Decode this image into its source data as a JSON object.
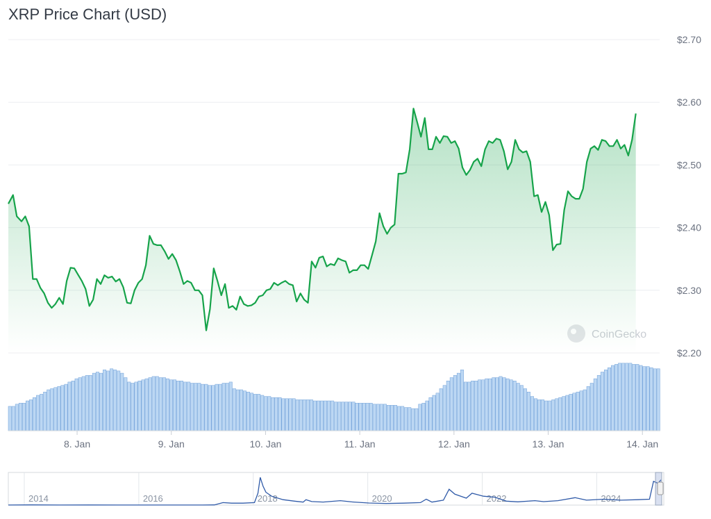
{
  "title": "XRP Price Chart (USD)",
  "watermark": "CoinGecko",
  "chart_data": {
    "type": "line",
    "title": "XRP Price Chart (USD)",
    "xlabel": "",
    "ylabel": "",
    "ylim": [
      2.2,
      2.7
    ],
    "y_ticks": [
      "$2.20",
      "$2.30",
      "$2.40",
      "$2.50",
      "$2.60",
      "$2.70"
    ],
    "y_tick_values": [
      2.2,
      2.3,
      2.4,
      2.5,
      2.6,
      2.7
    ],
    "x_ticks": [
      "8. Jan",
      "9. Jan",
      "10. Jan",
      "11. Jan",
      "12. Jan",
      "13. Jan",
      "14. Jan"
    ],
    "x_tick_values": [
      0.73,
      1.73,
      2.73,
      3.73,
      4.73,
      5.73,
      6.73
    ],
    "xlim": [
      0,
      6.92
    ],
    "grid": true,
    "colors": {
      "line": "#16a34a",
      "fill_top": "#16a34a",
      "volume_bar": "#bcd7f3",
      "volume_edge": "#6e9fd8",
      "navigator": "#2f5aa8"
    },
    "series": [
      {
        "values": [
          [
            0.0,
            2.438
          ],
          [
            0.05,
            2.452
          ],
          [
            0.09,
            2.418
          ],
          [
            0.14,
            2.41
          ],
          [
            0.18,
            2.418
          ],
          [
            0.22,
            2.402
          ],
          [
            0.26,
            2.318
          ],
          [
            0.3,
            2.318
          ],
          [
            0.34,
            2.304
          ],
          [
            0.38,
            2.295
          ],
          [
            0.42,
            2.28
          ],
          [
            0.46,
            2.272
          ],
          [
            0.5,
            2.278
          ],
          [
            0.54,
            2.288
          ],
          [
            0.58,
            2.278
          ],
          [
            0.62,
            2.315
          ],
          [
            0.66,
            2.336
          ],
          [
            0.7,
            2.335
          ],
          [
            0.74,
            2.325
          ],
          [
            0.78,
            2.315
          ],
          [
            0.82,
            2.302
          ],
          [
            0.86,
            2.275
          ],
          [
            0.9,
            2.285
          ],
          [
            0.94,
            2.318
          ],
          [
            0.98,
            2.31
          ],
          [
            1.02,
            2.324
          ],
          [
            1.06,
            2.32
          ],
          [
            1.1,
            2.322
          ],
          [
            1.14,
            2.314
          ],
          [
            1.18,
            2.318
          ],
          [
            1.22,
            2.305
          ],
          [
            1.26,
            2.28
          ],
          [
            1.3,
            2.279
          ],
          [
            1.34,
            2.3
          ],
          [
            1.38,
            2.312
          ],
          [
            1.42,
            2.318
          ],
          [
            1.46,
            2.34
          ],
          [
            1.5,
            2.387
          ],
          [
            1.54,
            2.374
          ],
          [
            1.58,
            2.372
          ],
          [
            1.62,
            2.372
          ],
          [
            1.66,
            2.362
          ],
          [
            1.7,
            2.35
          ],
          [
            1.74,
            2.358
          ],
          [
            1.78,
            2.348
          ],
          [
            1.82,
            2.33
          ],
          [
            1.86,
            2.31
          ],
          [
            1.9,
            2.315
          ],
          [
            1.94,
            2.312
          ],
          [
            1.98,
            2.3
          ],
          [
            2.02,
            2.3
          ],
          [
            2.06,
            2.292
          ],
          [
            2.1,
            2.236
          ],
          [
            2.14,
            2.27
          ],
          [
            2.18,
            2.335
          ],
          [
            2.22,
            2.315
          ],
          [
            2.26,
            2.292
          ],
          [
            2.3,
            2.31
          ],
          [
            2.34,
            2.272
          ],
          [
            2.38,
            2.275
          ],
          [
            2.42,
            2.269
          ],
          [
            2.46,
            2.29
          ],
          [
            2.5,
            2.278
          ],
          [
            2.54,
            2.275
          ],
          [
            2.58,
            2.276
          ],
          [
            2.62,
            2.28
          ],
          [
            2.66,
            2.29
          ],
          [
            2.7,
            2.292
          ],
          [
            2.74,
            2.3
          ],
          [
            2.78,
            2.302
          ],
          [
            2.82,
            2.312
          ],
          [
            2.86,
            2.308
          ],
          [
            2.9,
            2.312
          ],
          [
            2.94,
            2.315
          ],
          [
            2.98,
            2.31
          ],
          [
            3.02,
            2.308
          ],
          [
            3.06,
            2.282
          ],
          [
            3.1,
            2.295
          ],
          [
            3.14,
            2.285
          ],
          [
            3.18,
            2.28
          ],
          [
            3.22,
            2.346
          ],
          [
            3.26,
            2.336
          ],
          [
            3.3,
            2.352
          ],
          [
            3.34,
            2.354
          ],
          [
            3.38,
            2.338
          ],
          [
            3.42,
            2.342
          ],
          [
            3.46,
            2.34
          ],
          [
            3.5,
            2.351
          ],
          [
            3.54,
            2.348
          ],
          [
            3.58,
            2.346
          ],
          [
            3.62,
            2.328
          ],
          [
            3.66,
            2.332
          ],
          [
            3.7,
            2.332
          ],
          [
            3.74,
            2.34
          ],
          [
            3.78,
            2.34
          ],
          [
            3.82,
            2.334
          ],
          [
            3.86,
            2.356
          ],
          [
            3.9,
            2.378
          ],
          [
            3.94,
            2.423
          ],
          [
            3.98,
            2.402
          ],
          [
            4.02,
            2.39
          ],
          [
            4.06,
            2.4
          ],
          [
            4.1,
            2.405
          ],
          [
            4.14,
            2.486
          ],
          [
            4.18,
            2.486
          ],
          [
            4.22,
            2.488
          ],
          [
            4.26,
            2.525
          ],
          [
            4.3,
            2.59
          ],
          [
            4.34,
            2.568
          ],
          [
            4.38,
            2.545
          ],
          [
            4.42,
            2.575
          ],
          [
            4.46,
            2.525
          ],
          [
            4.5,
            2.525
          ],
          [
            4.54,
            2.545
          ],
          [
            4.58,
            2.535
          ],
          [
            4.62,
            2.546
          ],
          [
            4.66,
            2.545
          ],
          [
            4.7,
            2.535
          ],
          [
            4.74,
            2.538
          ],
          [
            4.78,
            2.526
          ],
          [
            4.82,
            2.496
          ],
          [
            4.86,
            2.484
          ],
          [
            4.9,
            2.492
          ],
          [
            4.94,
            2.505
          ],
          [
            4.98,
            2.51
          ],
          [
            5.02,
            2.498
          ],
          [
            5.06,
            2.525
          ],
          [
            5.1,
            2.538
          ],
          [
            5.14,
            2.535
          ],
          [
            5.18,
            2.542
          ],
          [
            5.22,
            2.54
          ],
          [
            5.26,
            2.522
          ],
          [
            5.3,
            2.493
          ],
          [
            5.34,
            2.505
          ],
          [
            5.38,
            2.54
          ],
          [
            5.42,
            2.525
          ],
          [
            5.46,
            2.52
          ],
          [
            5.5,
            2.522
          ],
          [
            5.54,
            2.505
          ],
          [
            5.58,
            2.45
          ],
          [
            5.62,
            2.452
          ],
          [
            5.66,
            2.425
          ],
          [
            5.7,
            2.441
          ],
          [
            5.74,
            2.42
          ],
          [
            5.78,
            2.364
          ],
          [
            5.82,
            2.373
          ],
          [
            5.86,
            2.374
          ],
          [
            5.9,
            2.428
          ],
          [
            5.94,
            2.458
          ],
          [
            5.98,
            2.45
          ],
          [
            6.02,
            2.446
          ],
          [
            6.06,
            2.446
          ],
          [
            6.1,
            2.462
          ],
          [
            6.14,
            2.505
          ],
          [
            6.18,
            2.526
          ],
          [
            6.22,
            2.53
          ],
          [
            6.26,
            2.524
          ],
          [
            6.3,
            2.54
          ],
          [
            6.34,
            2.538
          ],
          [
            6.38,
            2.53
          ],
          [
            6.42,
            2.53
          ],
          [
            6.46,
            2.54
          ],
          [
            6.5,
            2.526
          ],
          [
            6.54,
            2.532
          ],
          [
            6.58,
            2.515
          ],
          [
            6.62,
            2.54
          ],
          [
            6.66,
            2.582
          ]
        ]
      }
    ],
    "volume": {
      "values": [
        22,
        22,
        24,
        25,
        25,
        27,
        28,
        30,
        32,
        33,
        35,
        37,
        38,
        39,
        40,
        41,
        42,
        44,
        45,
        47,
        48,
        49,
        50,
        50,
        52,
        53,
        52,
        55,
        54,
        56,
        55,
        54,
        52,
        48,
        44,
        43,
        44,
        45,
        46,
        47,
        48,
        49,
        49,
        48,
        48,
        47,
        46,
        46,
        45,
        45,
        44,
        44,
        43,
        43,
        43,
        42,
        42,
        41,
        41,
        42,
        42,
        43,
        43,
        44,
        38,
        37,
        37,
        36,
        35,
        34,
        33,
        33,
        32,
        31,
        31,
        30,
        30,
        30,
        29,
        29,
        29,
        29,
        28,
        28,
        28,
        28,
        28,
        27,
        27,
        27,
        27,
        27,
        27,
        26,
        26,
        26,
        26,
        26,
        26,
        25,
        25,
        25,
        25,
        25,
        24,
        24,
        24,
        24,
        23,
        23,
        23,
        22,
        22,
        21,
        21,
        20,
        20,
        24,
        25,
        27,
        30,
        32,
        34,
        38,
        41,
        45,
        48,
        50,
        52,
        55,
        44,
        44,
        45,
        45,
        46,
        46,
        47,
        47,
        48,
        48,
        49,
        48,
        47,
        46,
        45,
        43,
        41,
        38,
        35,
        31,
        29,
        28,
        28,
        27,
        27,
        28,
        29,
        30,
        31,
        32,
        33,
        34,
        35,
        36,
        37,
        40,
        43,
        47,
        50,
        53,
        55,
        57,
        59,
        60,
        61,
        61,
        61,
        61,
        60,
        60,
        59,
        58,
        58,
        57,
        56,
        56
      ]
    },
    "navigator": {
      "x_ticks": [
        "2014",
        "2016",
        "2018",
        "2020",
        "2022",
        "2024"
      ],
      "x_tick_values": [
        2014,
        2016,
        2018,
        2020,
        2022,
        2024
      ],
      "xlim": [
        2013.6,
        2025.05
      ],
      "ylim": [
        0,
        3.3
      ],
      "values": [
        [
          2013.6,
          0.006
        ],
        [
          2014.0,
          0.02
        ],
        [
          2014.5,
          0.005
        ],
        [
          2015.0,
          0.015
        ],
        [
          2015.5,
          0.008
        ],
        [
          2016.0,
          0.006
        ],
        [
          2016.5,
          0.007
        ],
        [
          2017.0,
          0.006
        ],
        [
          2017.2,
          0.02
        ],
        [
          2017.35,
          0.25
        ],
        [
          2017.5,
          0.2
        ],
        [
          2017.7,
          0.2
        ],
        [
          2017.9,
          0.25
        ],
        [
          2017.96,
          1.2
        ],
        [
          2018.0,
          2.8
        ],
        [
          2018.05,
          1.9
        ],
        [
          2018.1,
          1.3
        ],
        [
          2018.2,
          0.9
        ],
        [
          2018.4,
          0.55
        ],
        [
          2018.6,
          0.4
        ],
        [
          2018.75,
          0.3
        ],
        [
          2018.8,
          0.55
        ],
        [
          2018.9,
          0.36
        ],
        [
          2019.1,
          0.31
        ],
        [
          2019.4,
          0.45
        ],
        [
          2019.6,
          0.32
        ],
        [
          2019.9,
          0.21
        ],
        [
          2020.2,
          0.17
        ],
        [
          2020.5,
          0.2
        ],
        [
          2020.8,
          0.25
        ],
        [
          2020.9,
          0.6
        ],
        [
          2021.0,
          0.3
        ],
        [
          2021.2,
          0.5
        ],
        [
          2021.3,
          1.6
        ],
        [
          2021.4,
          1.1
        ],
        [
          2021.6,
          0.7
        ],
        [
          2021.7,
          1.2
        ],
        [
          2021.9,
          0.9
        ],
        [
          2022.1,
          0.8
        ],
        [
          2022.3,
          0.4
        ],
        [
          2022.5,
          0.33
        ],
        [
          2022.8,
          0.45
        ],
        [
          2022.95,
          0.35
        ],
        [
          2023.2,
          0.45
        ],
        [
          2023.5,
          0.75
        ],
        [
          2023.7,
          0.5
        ],
        [
          2024.0,
          0.6
        ],
        [
          2024.3,
          0.5
        ],
        [
          2024.6,
          0.55
        ],
        [
          2024.8,
          0.6
        ],
        [
          2024.87,
          2.4
        ],
        [
          2024.95,
          2.2
        ],
        [
          2025.0,
          2.55
        ]
      ]
    }
  }
}
